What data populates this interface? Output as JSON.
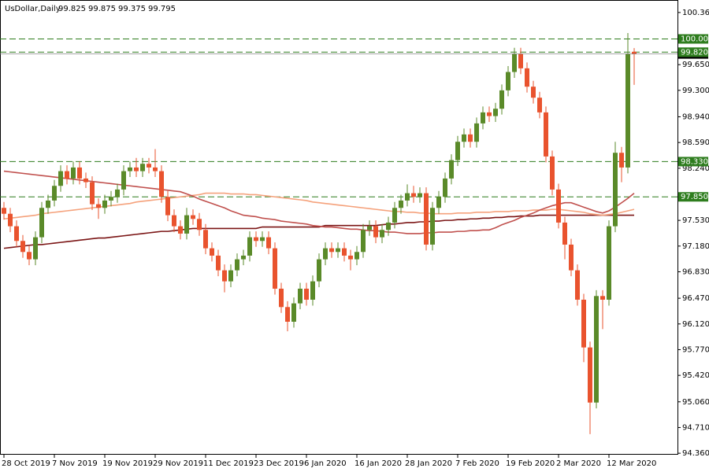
{
  "chart_data": {
    "type": "candlestick",
    "title": "UsDollar,Daily",
    "categories": [
      "28 Oct 2019",
      null,
      null,
      null,
      null,
      null,
      null,
      null,
      "7 Nov 2019",
      null,
      null,
      null,
      null,
      null,
      null,
      null,
      "19 Nov 2019",
      null,
      null,
      null,
      null,
      null,
      null,
      null,
      "29 Nov 2019",
      null,
      null,
      null,
      null,
      null,
      null,
      null,
      "11 Dec 2019",
      null,
      null,
      null,
      null,
      null,
      null,
      null,
      "23 Dec 2019",
      null,
      null,
      null,
      null,
      null,
      null,
      null,
      "6 Jan 2020",
      null,
      null,
      null,
      null,
      null,
      null,
      null,
      "16 Jan 2020",
      null,
      null,
      null,
      null,
      null,
      null,
      null,
      "28 Jan 2020",
      null,
      null,
      null,
      null,
      null,
      null,
      null,
      "7 Feb 2020",
      null,
      null,
      null,
      null,
      null,
      null,
      null,
      "19 Feb 2020",
      null,
      null,
      null,
      null,
      null,
      null,
      null,
      "2 Mar 2020",
      null,
      null,
      null,
      null,
      null,
      null,
      null,
      "12 Mar 2020",
      null,
      null,
      null,
      null
    ],
    "open": [
      97.7,
      97.62,
      97.45,
      97.25,
      97.1,
      97.0,
      97.3,
      97.7,
      97.8,
      98.0,
      98.2,
      98.1,
      98.25,
      98.1,
      98.05,
      97.75,
      97.7,
      97.8,
      97.85,
      97.95,
      98.2,
      98.25,
      98.2,
      98.3,
      98.25,
      98.2,
      97.85,
      97.6,
      97.45,
      97.35,
      97.6,
      97.55,
      97.4,
      97.15,
      97.05,
      96.85,
      96.7,
      96.85,
      97.0,
      97.05,
      97.3,
      97.25,
      97.3,
      97.15,
      96.6,
      96.35,
      96.15,
      96.4,
      96.6,
      96.45,
      96.7,
      97.0,
      97.15,
      97.1,
      97.15,
      97.05,
      97.0,
      97.1,
      97.4,
      97.45,
      97.3,
      97.4,
      97.5,
      97.7,
      97.8,
      97.9,
      97.85,
      97.9,
      97.2,
      97.7,
      97.85,
      98.1,
      98.35,
      98.6,
      98.7,
      98.6,
      98.85,
      99.0,
      98.95,
      99.05,
      99.3,
      99.55,
      99.8,
      99.6,
      99.35,
      99.2,
      99.0,
      98.4,
      97.95,
      97.5,
      97.2,
      96.85,
      96.45,
      95.8,
      95.05,
      96.5,
      96.45,
      97.45,
      98.45,
      98.25,
      99.825
    ],
    "high": [
      97.78,
      97.7,
      97.53,
      97.33,
      97.18,
      97.38,
      97.78,
      97.88,
      98.08,
      98.28,
      98.28,
      98.33,
      98.33,
      98.18,
      98.13,
      97.83,
      97.88,
      97.93,
      98.03,
      98.28,
      98.33,
      98.38,
      98.38,
      98.38,
      98.5,
      98.28,
      97.93,
      97.68,
      97.53,
      97.7,
      97.68,
      97.63,
      97.48,
      97.23,
      97.13,
      96.93,
      96.93,
      97.08,
      97.13,
      97.38,
      97.38,
      97.38,
      97.38,
      97.23,
      96.68,
      96.43,
      96.48,
      96.68,
      96.68,
      96.78,
      97.08,
      97.23,
      97.23,
      97.23,
      97.23,
      97.13,
      97.18,
      97.48,
      97.53,
      97.53,
      97.48,
      97.58,
      97.78,
      97.88,
      98.02,
      98.0,
      97.98,
      97.98,
      97.78,
      97.93,
      98.18,
      98.43,
      98.68,
      98.78,
      98.78,
      98.93,
      99.08,
      99.08,
      99.13,
      99.38,
      99.63,
      99.88,
      99.88,
      99.68,
      99.43,
      99.28,
      99.08,
      98.48,
      98.03,
      97.58,
      97.28,
      96.93,
      96.53,
      95.88,
      96.58,
      96.58,
      97.53,
      98.6,
      98.53,
      100.08,
      99.875
    ],
    "low": [
      97.54,
      97.37,
      97.17,
      97.02,
      96.92,
      96.92,
      97.22,
      97.62,
      97.72,
      97.92,
      98.02,
      98.02,
      98.02,
      97.97,
      97.67,
      97.55,
      97.62,
      97.72,
      97.77,
      97.87,
      98.12,
      98.12,
      98.12,
      98.17,
      98.12,
      97.77,
      97.52,
      97.37,
      97.27,
      97.27,
      97.47,
      97.32,
      97.07,
      96.97,
      96.77,
      96.55,
      96.62,
      96.77,
      96.92,
      96.97,
      97.17,
      97.17,
      97.07,
      96.52,
      96.27,
      96.02,
      96.07,
      96.32,
      96.37,
      96.37,
      96.62,
      96.92,
      97.02,
      97.02,
      96.97,
      96.85,
      96.92,
      97.02,
      97.32,
      97.22,
      97.22,
      97.32,
      97.42,
      97.62,
      97.72,
      97.77,
      97.77,
      97.12,
      97.12,
      97.62,
      97.77,
      98.02,
      98.27,
      98.52,
      98.52,
      98.52,
      98.77,
      98.87,
      98.87,
      98.97,
      99.22,
      99.47,
      99.52,
      99.27,
      99.12,
      98.92,
      98.32,
      97.87,
      97.42,
      97.0,
      96.77,
      96.37,
      95.6,
      94.62,
      94.97,
      96.05,
      96.37,
      97.37,
      98.05,
      98.17,
      99.375
    ],
    "close": [
      97.62,
      97.45,
      97.25,
      97.1,
      97.0,
      97.3,
      97.7,
      97.8,
      98.0,
      98.2,
      98.1,
      98.25,
      98.1,
      98.05,
      97.75,
      97.7,
      97.8,
      97.85,
      97.95,
      98.2,
      98.25,
      98.2,
      98.3,
      98.25,
      98.2,
      97.85,
      97.6,
      97.45,
      97.35,
      97.6,
      97.55,
      97.4,
      97.15,
      97.05,
      96.85,
      96.7,
      96.85,
      97.0,
      97.05,
      97.3,
      97.25,
      97.3,
      97.15,
      96.6,
      96.35,
      96.15,
      96.4,
      96.6,
      96.45,
      96.7,
      97.0,
      97.15,
      97.1,
      97.15,
      97.05,
      97.0,
      97.1,
      97.4,
      97.45,
      97.3,
      97.4,
      97.5,
      97.7,
      97.8,
      97.9,
      97.85,
      97.9,
      97.2,
      97.7,
      97.85,
      98.1,
      98.35,
      98.6,
      98.7,
      98.6,
      98.85,
      99.0,
      98.95,
      99.05,
      99.3,
      99.55,
      99.8,
      99.6,
      99.35,
      99.2,
      99.0,
      98.4,
      97.95,
      97.5,
      97.2,
      96.85,
      96.45,
      95.8,
      95.05,
      96.5,
      96.45,
      97.45,
      98.45,
      98.25,
      99.8,
      99.795
    ],
    "up_color": "#5a8a29",
    "down_color": "#e9532e",
    "moving_averages": [
      {
        "color": "#7b1515",
        "values": [
          97.15,
          97.16,
          97.17,
          97.18,
          97.19,
          97.2,
          97.2,
          97.21,
          97.22,
          97.23,
          97.24,
          97.25,
          97.26,
          97.27,
          97.28,
          97.29,
          97.29,
          97.3,
          97.31,
          97.32,
          97.33,
          97.34,
          97.35,
          97.36,
          97.37,
          97.38,
          97.38,
          97.39,
          97.4,
          97.41,
          97.42,
          97.42,
          97.42,
          97.42,
          97.42,
          97.42,
          97.42,
          97.42,
          97.42,
          97.42,
          97.42,
          97.44,
          97.44,
          97.44,
          97.44,
          97.44,
          97.44,
          97.44,
          97.44,
          97.44,
          97.44,
          97.46,
          97.46,
          97.46,
          97.46,
          97.46,
          97.46,
          97.46,
          97.46,
          97.46,
          97.47,
          97.48,
          97.48,
          97.49,
          97.5,
          97.5,
          97.51,
          97.51,
          97.52,
          97.52,
          97.53,
          97.53,
          97.54,
          97.54,
          97.55,
          97.55,
          97.56,
          97.56,
          97.57,
          97.57,
          97.58,
          97.58,
          97.59,
          97.59,
          97.59,
          97.6,
          97.6,
          97.6,
          97.6,
          97.6,
          97.6,
          97.6,
          97.6,
          97.6,
          97.6,
          97.6,
          97.6,
          97.6,
          97.6,
          97.6,
          97.6
        ]
      },
      {
        "color": "#f5a27c",
        "values": [
          97.55,
          97.56,
          97.57,
          97.58,
          97.59,
          97.6,
          97.62,
          97.63,
          97.64,
          97.65,
          97.66,
          97.67,
          97.68,
          97.69,
          97.7,
          97.71,
          97.72,
          97.73,
          97.74,
          97.75,
          97.76,
          97.78,
          97.79,
          97.8,
          97.81,
          97.82,
          97.83,
          97.84,
          97.85,
          97.86,
          97.87,
          97.88,
          97.9,
          97.9,
          97.9,
          97.9,
          97.89,
          97.89,
          97.89,
          97.88,
          97.88,
          97.87,
          97.86,
          97.85,
          97.84,
          97.83,
          97.82,
          97.81,
          97.8,
          97.78,
          97.77,
          97.76,
          97.75,
          97.74,
          97.73,
          97.72,
          97.71,
          97.7,
          97.69,
          97.68,
          97.67,
          97.66,
          97.65,
          97.65,
          97.64,
          97.64,
          97.63,
          97.63,
          97.62,
          97.62,
          97.62,
          97.62,
          97.63,
          97.63,
          97.63,
          97.64,
          97.64,
          97.64,
          97.65,
          97.65,
          97.65,
          97.66,
          97.66,
          97.66,
          97.67,
          97.67,
          97.67,
          97.68,
          97.68,
          97.67,
          97.66,
          97.65,
          97.64,
          97.62,
          97.61,
          97.6,
          97.61,
          97.62,
          97.64,
          97.66,
          97.68
        ]
      },
      {
        "color": "#c0504d",
        "values": [
          98.2,
          98.19,
          98.18,
          98.17,
          98.16,
          98.15,
          98.14,
          98.13,
          98.12,
          98.11,
          98.1,
          98.09,
          98.08,
          98.07,
          98.06,
          98.05,
          98.04,
          98.03,
          98.02,
          98.01,
          98.0,
          97.99,
          97.98,
          97.97,
          97.96,
          97.95,
          97.94,
          97.93,
          97.92,
          97.89,
          97.86,
          97.82,
          97.79,
          97.76,
          97.73,
          97.7,
          97.66,
          97.63,
          97.6,
          97.59,
          97.58,
          97.56,
          97.55,
          97.54,
          97.52,
          97.51,
          97.5,
          97.49,
          97.48,
          97.46,
          97.45,
          97.44,
          97.44,
          97.43,
          97.42,
          97.41,
          97.41,
          97.4,
          97.39,
          97.39,
          97.38,
          97.37,
          97.37,
          97.36,
          97.35,
          97.35,
          97.35,
          97.36,
          97.36,
          97.37,
          97.37,
          97.37,
          97.38,
          97.38,
          97.39,
          97.39,
          97.4,
          97.4,
          97.43,
          97.47,
          97.5,
          97.53,
          97.57,
          97.6,
          97.63,
          97.67,
          97.7,
          97.73,
          97.75,
          97.77,
          97.77,
          97.74,
          97.71,
          97.68,
          97.65,
          97.63,
          97.66,
          97.71,
          97.77,
          97.83,
          97.9
        ]
      }
    ],
    "levels": [
      {
        "value": 100,
        "label": "100.000"
      },
      {
        "value": 99.82,
        "label": "99.820"
      },
      {
        "value": 98.33,
        "label": "98.330"
      },
      {
        "value": 97.85,
        "label": "97.850"
      }
    ],
    "level_color": "#2e7d1e",
    "ylim": [
      94.34,
      100.53
    ],
    "yticks": [
      {
        "value": 100.36,
        "label": "100.360"
      },
      {
        "value": 99.65,
        "label": "99.650"
      },
      {
        "value": 99.3,
        "label": "99.300"
      },
      {
        "value": 98.94,
        "label": "98.940"
      },
      {
        "value": 98.59,
        "label": "98.590"
      },
      {
        "value": 98.24,
        "label": "98.240"
      },
      {
        "value": 97.53,
        "label": "97.530"
      },
      {
        "value": 97.18,
        "label": "97.180"
      },
      {
        "value": 96.83,
        "label": "96.830"
      },
      {
        "value": 96.47,
        "label": "96.470"
      },
      {
        "value": 96.12,
        "label": "96.120"
      },
      {
        "value": 95.77,
        "label": "95.770"
      },
      {
        "value": 95.42,
        "label": "95.420"
      },
      {
        "value": 95.06,
        "label": "95.060"
      },
      {
        "value": 94.71,
        "label": "94.710"
      },
      {
        "value": 94.36,
        "label": "94.360"
      }
    ]
  }
}
